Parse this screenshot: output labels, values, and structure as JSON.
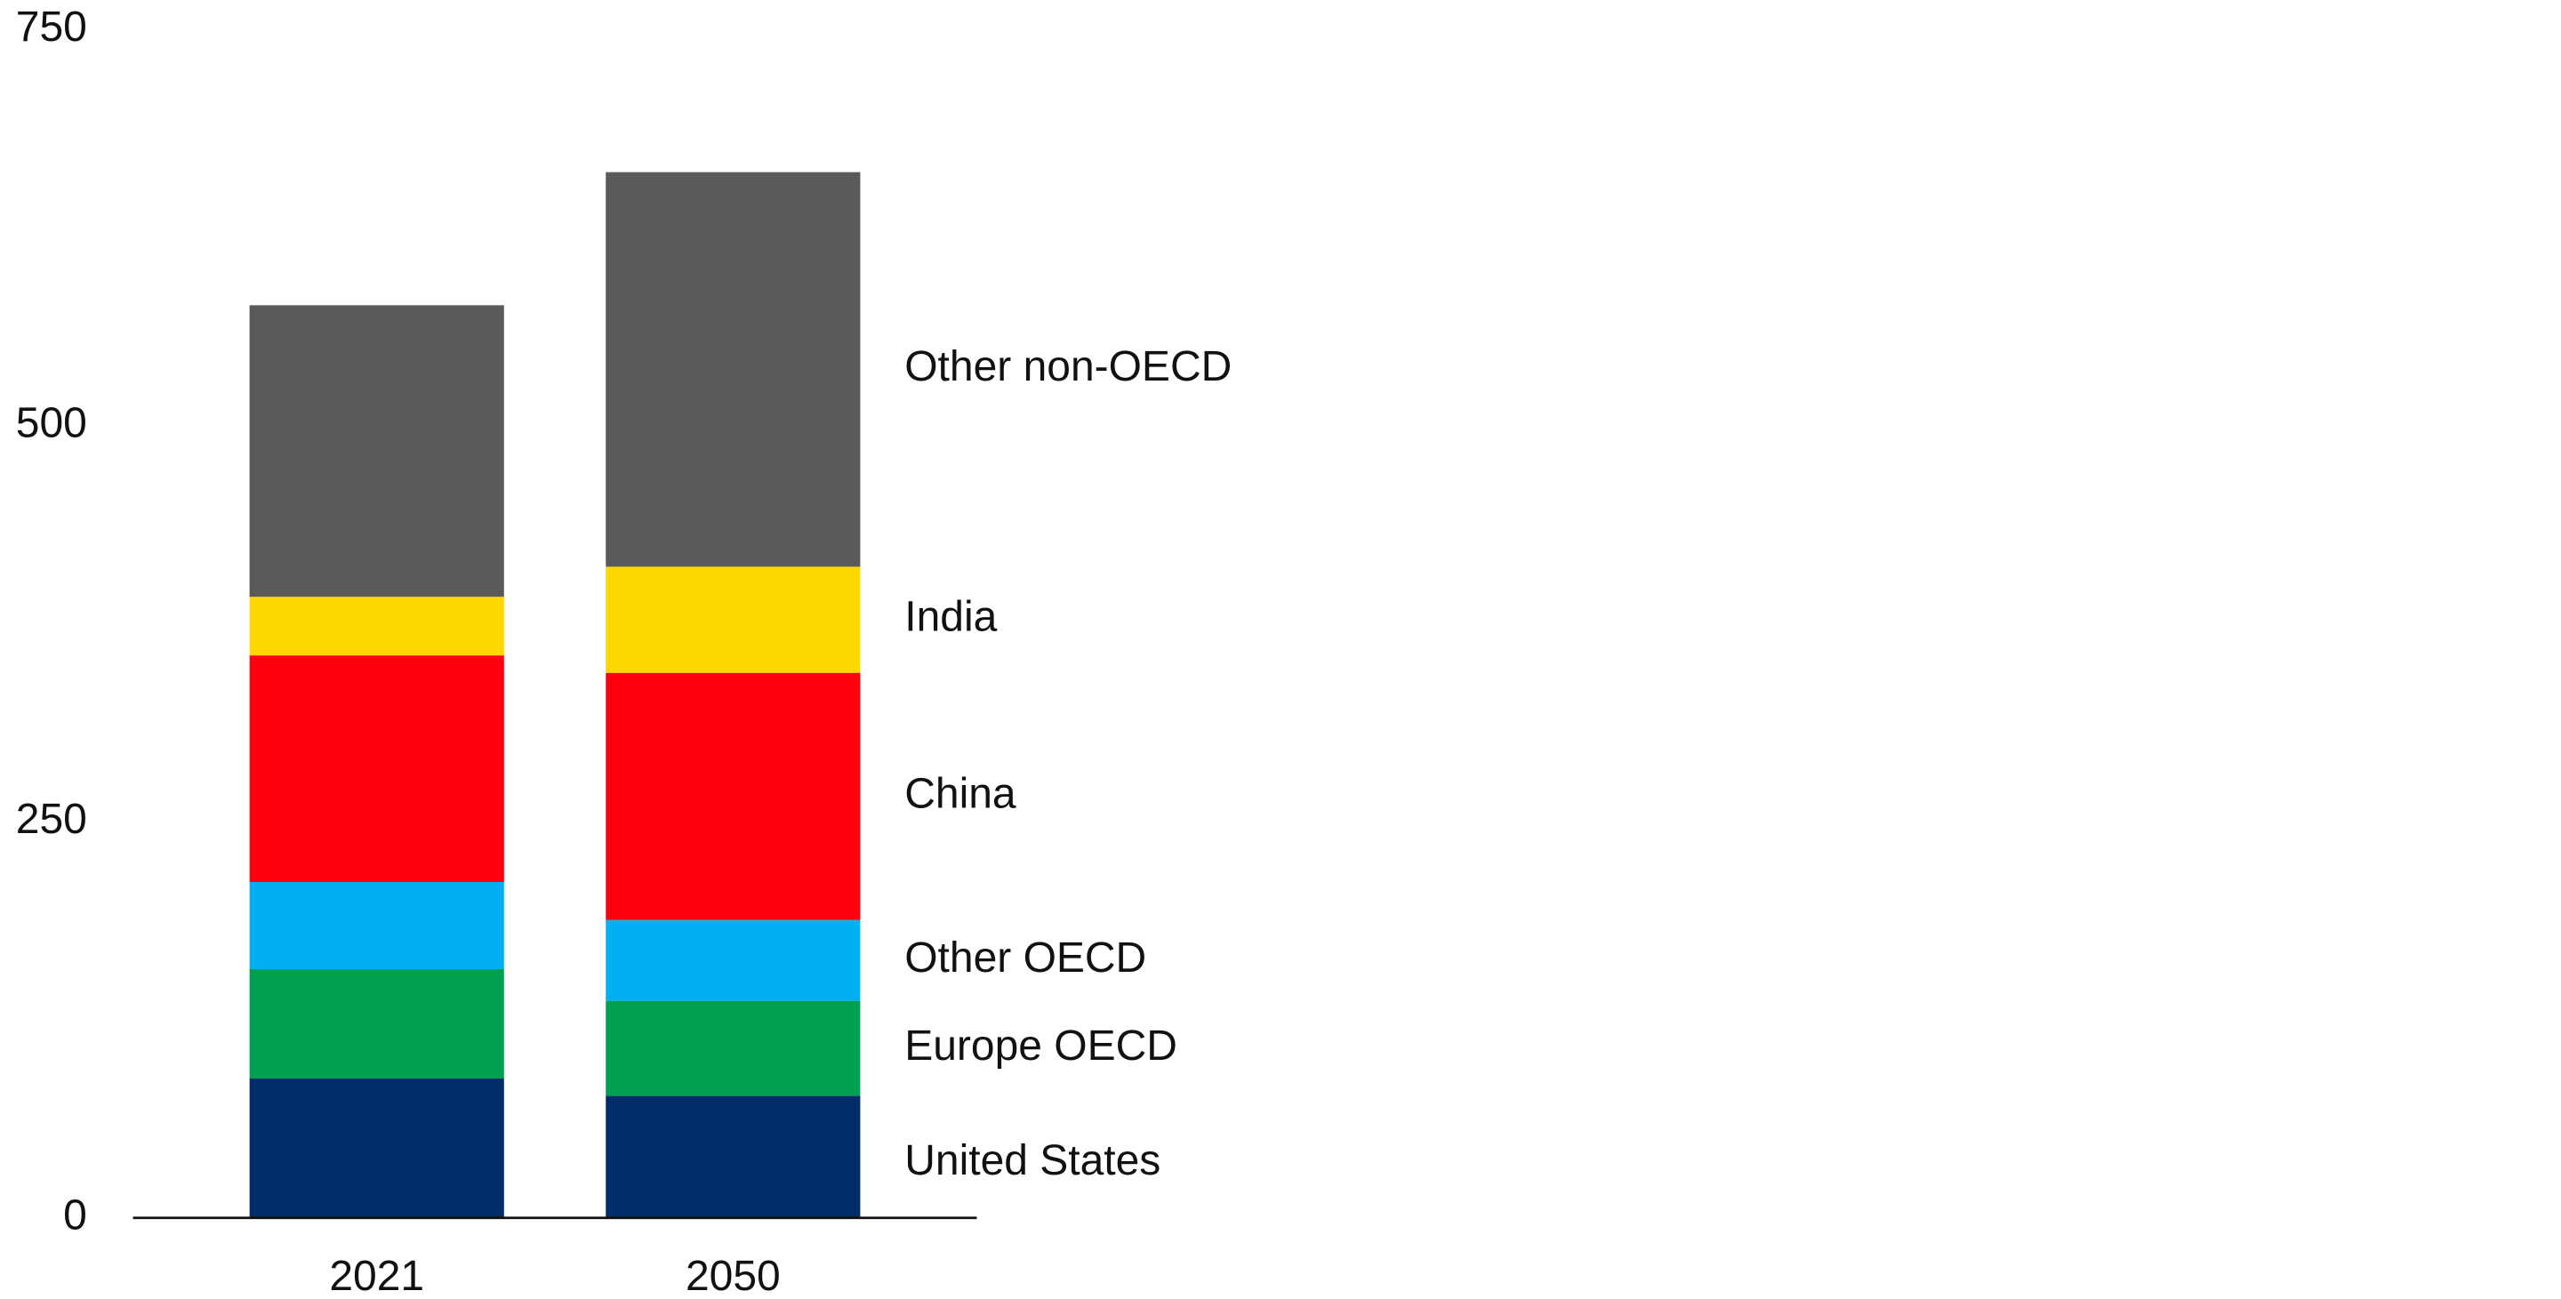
{
  "chart_data": {
    "type": "stacked_bar",
    "categories": [
      "2021",
      "2050"
    ],
    "series": [
      {
        "name": "United States",
        "color": "#002d6a",
        "values": [
          88,
          77
        ]
      },
      {
        "name": "Europe OECD",
        "color": "#00a050",
        "values": [
          69,
          60
        ]
      },
      {
        "name": "Other OECD",
        "color": "#00b0f0",
        "values": [
          55,
          51
        ]
      },
      {
        "name": "China",
        "color": "#ff0010",
        "values": [
          143,
          156
        ]
      },
      {
        "name": "India",
        "color": "#ffd800",
        "values": [
          37,
          67
        ]
      },
      {
        "name": "Other non-OECD",
        "color": "#5a5a5a",
        "values": [
          184,
          249
        ]
      }
    ],
    "ylim": [
      0,
      750
    ],
    "yticks": [
      0,
      250,
      500,
      750
    ],
    "grid": false
  }
}
